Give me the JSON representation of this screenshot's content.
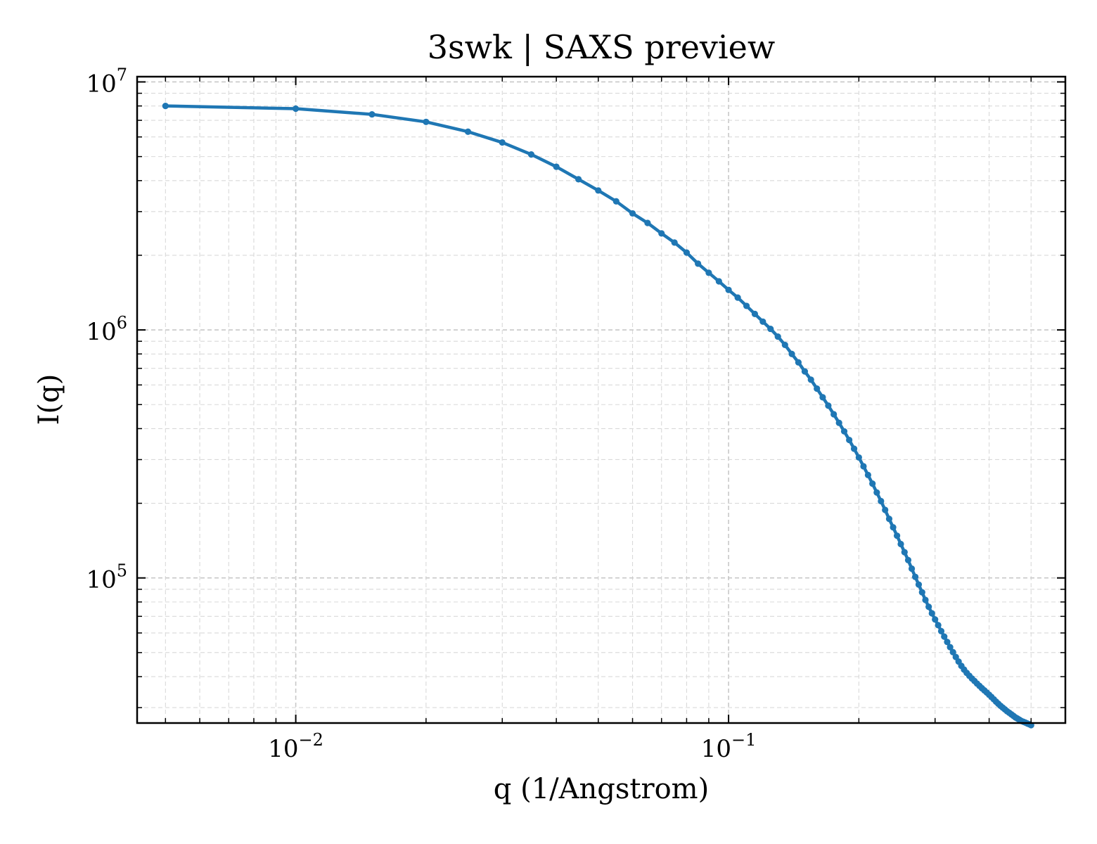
{
  "chart_data": {
    "type": "line",
    "title": "3swk | SAXS preview",
    "xlabel": "q (1/Angstrom)",
    "ylabel": "I(q)",
    "xscale": "log",
    "yscale": "log",
    "xlim": [
      0.0043,
      0.6
    ],
    "ylim": [
      26000,
      10500000
    ],
    "grid": true,
    "legend": "none",
    "x_ticks": [
      {
        "value": 0.01,
        "base": "10",
        "exp": "−2"
      },
      {
        "value": 0.1,
        "base": "10",
        "exp": "−1"
      }
    ],
    "y_ticks": [
      {
        "value": 100000,
        "base": "10",
        "exp": "5"
      },
      {
        "value": 1000000,
        "base": "10",
        "exp": "6"
      },
      {
        "value": 10000000,
        "base": "10",
        "exp": "7"
      }
    ],
    "series": [
      {
        "color": "#1f77b4",
        "x": [
          0.005,
          0.01,
          0.015,
          0.02,
          0.025,
          0.03,
          0.035,
          0.04,
          0.045,
          0.05,
          0.055,
          0.06,
          0.065,
          0.07,
          0.075,
          0.08,
          0.085,
          0.09,
          0.095,
          0.1,
          0.105,
          0.11,
          0.115,
          0.12,
          0.125,
          0.13,
          0.135,
          0.14,
          0.145,
          0.15,
          0.155,
          0.16,
          0.165,
          0.17,
          0.175,
          0.18,
          0.185,
          0.19,
          0.195,
          0.2,
          0.205,
          0.21,
          0.215,
          0.22,
          0.225,
          0.23,
          0.235,
          0.24,
          0.245,
          0.25,
          0.255,
          0.26,
          0.265,
          0.27,
          0.275,
          0.28,
          0.285,
          0.29,
          0.295,
          0.3,
          0.305,
          0.31,
          0.315,
          0.32,
          0.325,
          0.33,
          0.335,
          0.34,
          0.345,
          0.35,
          0.355,
          0.36,
          0.365,
          0.37,
          0.375,
          0.38,
          0.385,
          0.39,
          0.395,
          0.4,
          0.405,
          0.41,
          0.415,
          0.42,
          0.425,
          0.43,
          0.435,
          0.44,
          0.445,
          0.45,
          0.455,
          0.46,
          0.465,
          0.47,
          0.475,
          0.48,
          0.485,
          0.49,
          0.495,
          0.5
        ],
        "y": [
          8000000,
          7800000,
          7400000,
          6900000,
          6300000,
          5700000,
          5100000,
          4550000,
          4050000,
          3650000,
          3300000,
          2950000,
          2700000,
          2450000,
          2250000,
          2050000,
          1850000,
          1700000,
          1570000,
          1450000,
          1350000,
          1250000,
          1160000,
          1080000,
          1010000,
          940000,
          870000,
          800000,
          740000,
          680000,
          630000,
          580000,
          535000,
          495000,
          457000,
          422000,
          390000,
          360000,
          332000,
          306000,
          282000,
          260000,
          240000,
          221000,
          204000,
          188000,
          173000,
          160000,
          148000,
          137000,
          127000,
          118000,
          109000,
          101000,
          94000,
          87500,
          81500,
          76500,
          72000,
          68000,
          64500,
          61000,
          58000,
          55200,
          52600,
          50200,
          48000,
          46000,
          44200,
          42700,
          41400,
          40300,
          39300,
          38400,
          37500,
          36700,
          35900,
          35200,
          34500,
          33800,
          33100,
          32400,
          31700,
          31100,
          30500,
          30000,
          29500,
          29000,
          28600,
          28200,
          27800,
          27400,
          27100,
          26800,
          26500,
          26300,
          26100,
          25900,
          25700,
          25500
        ]
      }
    ]
  }
}
